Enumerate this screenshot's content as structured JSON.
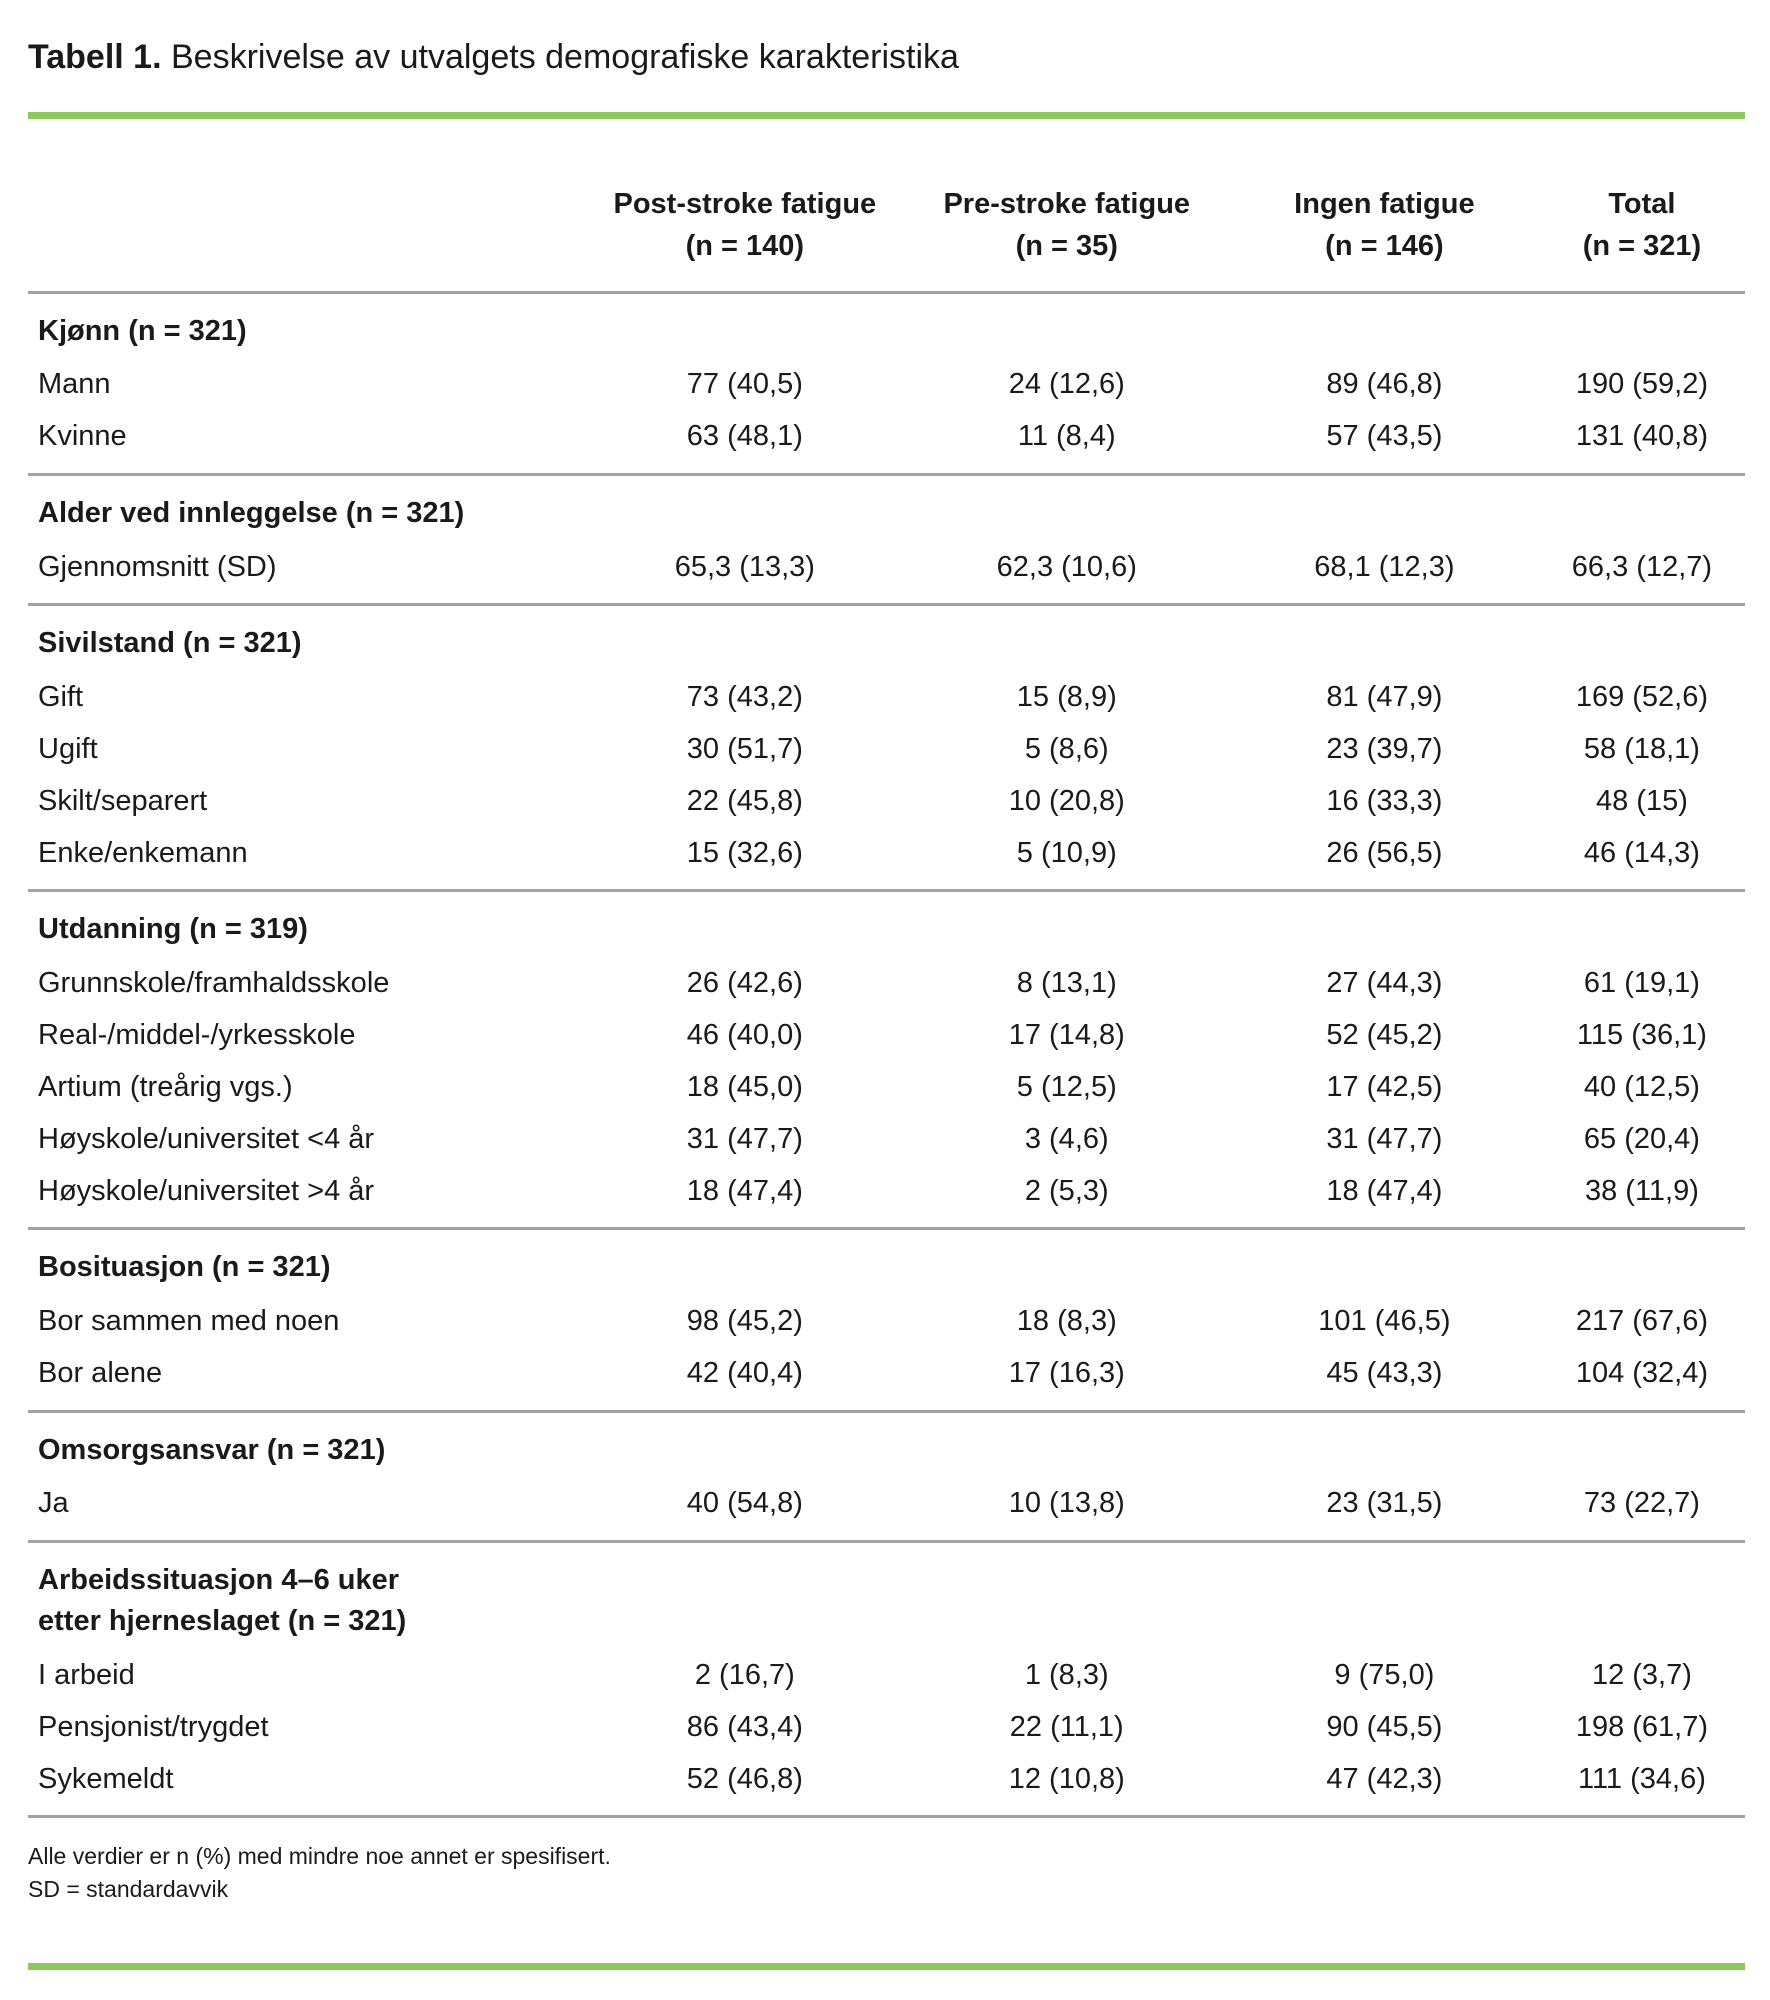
{
  "colors": {
    "accent_green": "#8cc85c",
    "divider_gray": "#a2a2a2",
    "text": "#1a1a1a"
  },
  "title": {
    "label": "Tabell 1.",
    "text": " Beskrivelse av utvalgets demografiske karakteristika"
  },
  "table": {
    "column_headers": [
      {
        "label": "Post-stroke fatigue",
        "n": "(n = 140)"
      },
      {
        "label": "Pre-stroke fatigue",
        "n": "(n = 35)"
      },
      {
        "label": "Ingen fatigue",
        "n": "(n = 146)"
      },
      {
        "label": "Total",
        "n": "(n = 321)"
      }
    ],
    "sections": [
      {
        "header": "Kjønn (n = 321)",
        "rows": [
          {
            "label": "Mann",
            "values": [
              "77 (40,5)",
              "24 (12,6)",
              "89 (46,8)",
              "190 (59,2)"
            ]
          },
          {
            "label": "Kvinne",
            "values": [
              "63 (48,1)",
              "11 (8,4)",
              "57 (43,5)",
              "131 (40,8)"
            ]
          }
        ]
      },
      {
        "header": "Alder ved innleggelse (n = 321)",
        "rows": [
          {
            "label": "Gjennomsnitt (SD)",
            "values": [
              "65,3 (13,3)",
              "62,3 (10,6)",
              "68,1 (12,3)",
              "66,3 (12,7)"
            ]
          }
        ]
      },
      {
        "header": "Sivilstand (n = 321)",
        "rows": [
          {
            "label": "Gift",
            "values": [
              "73 (43,2)",
              "15 (8,9)",
              "81 (47,9)",
              "169 (52,6)"
            ]
          },
          {
            "label": "Ugift",
            "values": [
              "30 (51,7)",
              "5 (8,6)",
              "23 (39,7)",
              "58 (18,1)"
            ]
          },
          {
            "label": "Skilt/separert",
            "values": [
              "22 (45,8)",
              "10 (20,8)",
              "16 (33,3)",
              "48 (15)"
            ]
          },
          {
            "label": "Enke/enkemann",
            "values": [
              "15 (32,6)",
              "5 (10,9)",
              "26 (56,5)",
              "46 (14,3)"
            ]
          }
        ]
      },
      {
        "header": "Utdanning (n = 319)",
        "rows": [
          {
            "label": "Grunnskole/framhaldsskole",
            "values": [
              "26 (42,6)",
              "8 (13,1)",
              "27 (44,3)",
              "61 (19,1)"
            ]
          },
          {
            "label": "Real-/middel-/yrkesskole",
            "values": [
              "46 (40,0)",
              "17 (14,8)",
              "52 (45,2)",
              "115 (36,1)"
            ]
          },
          {
            "label": "Artium (treårig vgs.)",
            "values": [
              "18 (45,0)",
              "5 (12,5)",
              "17 (42,5)",
              "40 (12,5)"
            ]
          },
          {
            "label": "Høyskole/universitet <4 år",
            "values": [
              "31 (47,7)",
              "3 (4,6)",
              "31 (47,7)",
              "65 (20,4)"
            ]
          },
          {
            "label": "Høyskole/universitet >4 år",
            "values": [
              "18 (47,4)",
              "2 (5,3)",
              "18 (47,4)",
              "38 (11,9)"
            ]
          }
        ]
      },
      {
        "header": "Bosituasjon (n = 321)",
        "rows": [
          {
            "label": "Bor sammen med noen",
            "values": [
              "98 (45,2)",
              "18 (8,3)",
              "101 (46,5)",
              "217 (67,6)"
            ]
          },
          {
            "label": "Bor alene",
            "values": [
              "42 (40,4)",
              "17 (16,3)",
              "45 (43,3)",
              "104 (32,4)"
            ]
          }
        ]
      },
      {
        "header": "Omsorgsansvar (n = 321)",
        "rows": [
          {
            "label": "Ja",
            "values": [
              "40 (54,8)",
              "10 (13,8)",
              "23 (31,5)",
              "73 (22,7)"
            ]
          }
        ]
      },
      {
        "header": "Arbeidssituasjon 4–6 uker\netter hjerneslaget (n = 321)",
        "rows": [
          {
            "label": "I arbeid",
            "values": [
              "2 (16,7)",
              "1 (8,3)",
              "9 (75,0)",
              "12 (3,7)"
            ]
          },
          {
            "label": "Pensjonist/trygdet",
            "values": [
              "86 (43,4)",
              "22 (11,1)",
              "90 (45,5)",
              "198 (61,7)"
            ]
          },
          {
            "label": "Sykemeldt",
            "values": [
              "52 (46,8)",
              "12 (10,8)",
              "47 (42,3)",
              "111 (34,6)"
            ]
          }
        ]
      }
    ]
  },
  "footnotes": [
    "Alle verdier er n (%) med mindre noe annet er spesifisert.",
    "SD = standardavvik"
  ]
}
